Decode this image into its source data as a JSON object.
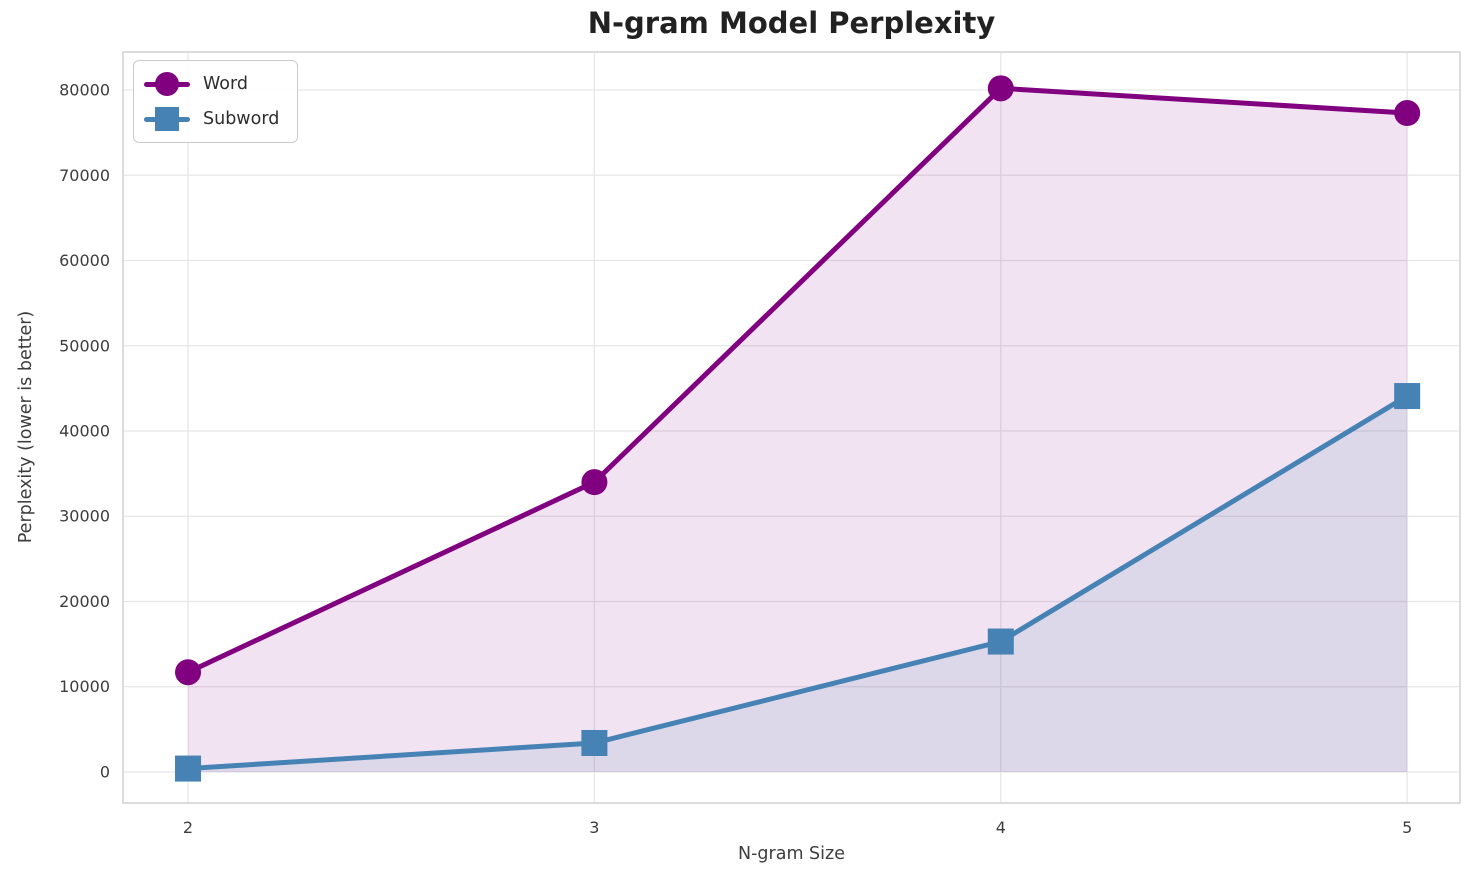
{
  "chart_data": {
    "type": "line",
    "title": "N-gram Model Perplexity",
    "xlabel": "N-gram Size",
    "ylabel": "Perplexity (lower is better)",
    "x": [
      2,
      3,
      4,
      5
    ],
    "series": [
      {
        "name": "Word",
        "marker": "circle",
        "color": "#800080",
        "fill_alpha": 0.11,
        "values": [
          11700,
          34000,
          80200,
          77300
        ]
      },
      {
        "name": "Subword",
        "marker": "square",
        "color": "#4682B4",
        "fill_alpha": 0.12,
        "values": [
          400,
          3400,
          15300,
          44100
        ]
      }
    ],
    "xticks": [
      "2",
      "3",
      "4",
      "5"
    ],
    "xtick_values": [
      2,
      3,
      4,
      5
    ],
    "yticks": [
      "0",
      "10000",
      "20000",
      "30000",
      "40000",
      "50000",
      "60000",
      "70000",
      "80000"
    ],
    "ytick_values": [
      0,
      10000,
      20000,
      30000,
      40000,
      50000,
      60000,
      70000,
      80000
    ],
    "xlim": [
      1.84,
      5.13
    ],
    "ylim": [
      -3640,
      84460
    ],
    "fill_baseline": 0,
    "grid": true,
    "grid_color": "#e7e7e7",
    "spine_color": "#d4d4d4",
    "legend_position": "upper left"
  }
}
